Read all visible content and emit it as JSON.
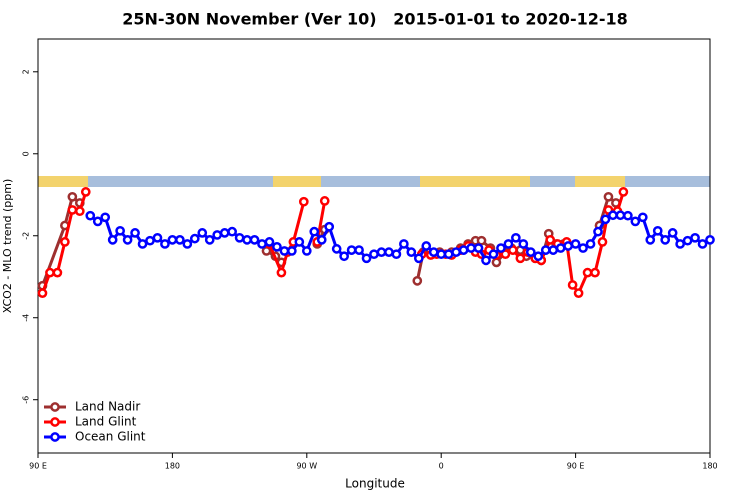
{
  "chart_data": {
    "type": "line",
    "title": "25N-30N November (Ver 10)   2015-01-01 to 2020-12-18",
    "x_label": "Longitude",
    "y_label": "XCO2 - MLO trend (ppm)",
    "xlim": [
      90,
      540
    ],
    "ylim": [
      -7.3,
      2.8
    ],
    "xticks": [
      {
        "value": 90,
        "label": "90 E"
      },
      180,
      {
        "value": 270,
        "label": "90 W"
      },
      {
        "value": 360,
        "label": "0"
      },
      {
        "value": 450,
        "label": "90 E"
      },
      {
        "value": 540,
        "label": "180"
      }
    ],
    "yticks": [
      -6,
      -4,
      -2,
      0,
      2
    ],
    "legend": "bottom-left",
    "series": [
      {
        "name": "Land Nadir",
        "color": "#9e2f2f",
        "x": [
          93,
          108,
          113,
          118,
          null,
          243,
          249,
          253,
          null,
          277,
          282,
          null,
          344,
          348,
          354,
          359,
          367,
          373,
          378,
          383,
          387,
          393,
          397,
          403,
          407,
          413,
          417,
          423,
          427,
          432,
          437,
          442,
          null,
          466,
          472,
          477
        ],
        "values": [
          -3.22,
          -1.75,
          -1.05,
          -1.2,
          null,
          -2.37,
          -2.5,
          -2.65,
          null,
          -2.2,
          -1.85,
          null,
          -3.1,
          -2.4,
          -2.45,
          -2.4,
          -2.4,
          -2.3,
          -2.2,
          -2.12,
          -2.12,
          -2.3,
          -2.65,
          -2.4,
          -2.3,
          -2.35,
          -2.5,
          -2.55,
          -2.6,
          -1.95,
          -2.2,
          -2.2,
          null,
          -1.75,
          -1.05,
          -1.2
        ]
      },
      {
        "name": "Land Glint",
        "color": "#ff0000",
        "x": [
          93,
          98,
          103,
          108,
          113,
          118,
          122,
          null,
          245,
          253,
          257,
          261,
          268,
          null,
          277,
          282,
          null,
          347,
          353,
          357,
          363,
          367,
          373,
          378,
          383,
          387,
          392,
          397,
          403,
          408,
          413,
          418,
          423,
          427,
          433,
          438,
          444,
          448,
          452,
          458,
          463,
          468,
          472,
          478,
          482
        ],
        "values": [
          -3.4,
          -2.9,
          -2.9,
          -2.15,
          -1.37,
          -1.4,
          -0.93,
          null,
          -2.2,
          -2.9,
          -2.4,
          -2.15,
          -1.17,
          null,
          -2.15,
          -1.15,
          null,
          -2.45,
          -2.47,
          -2.45,
          -2.45,
          -2.47,
          -2.35,
          -2.25,
          -2.4,
          -2.45,
          -2.35,
          -2.47,
          -2.45,
          -2.35,
          -2.55,
          -2.4,
          -2.55,
          -2.6,
          -2.1,
          -2.2,
          -2.15,
          -3.2,
          -3.4,
          -2.9,
          -2.9,
          -2.15,
          -1.37,
          -1.4,
          -0.93
        ]
      },
      {
        "name": "Ocean Glint",
        "color": "#0000ff",
        "x": [
          125,
          130,
          135,
          140,
          145,
          150,
          155,
          160,
          165,
          170,
          175,
          180,
          185,
          190,
          195,
          200,
          205,
          210,
          215,
          220,
          225,
          230,
          235,
          240,
          245,
          250,
          255,
          260,
          265,
          270,
          275,
          280,
          285,
          290,
          295,
          300,
          305,
          310,
          315,
          320,
          325,
          330,
          335,
          340,
          345,
          350,
          355,
          360,
          365,
          370,
          375,
          380,
          385,
          390,
          395,
          400,
          405,
          410,
          415,
          420,
          425,
          430,
          435,
          440,
          445,
          450,
          455,
          460,
          465,
          470,
          475,
          480,
          485,
          490,
          495,
          500,
          505,
          510,
          515,
          520,
          525,
          530,
          535,
          540
        ],
        "values": [
          -1.51,
          -1.65,
          -1.55,
          -2.1,
          -1.88,
          -2.1,
          -1.93,
          -2.2,
          -2.12,
          -2.05,
          -2.2,
          -2.1,
          -2.1,
          -2.2,
          -2.07,
          -1.93,
          -2.1,
          -1.98,
          -1.93,
          -1.9,
          -2.05,
          -2.1,
          -2.1,
          -2.2,
          -2.15,
          -2.27,
          -2.37,
          -2.37,
          -2.15,
          -2.37,
          -1.9,
          -2.1,
          -1.78,
          -2.32,
          -2.5,
          -2.35,
          -2.35,
          -2.55,
          -2.45,
          -2.4,
          -2.4,
          -2.45,
          -2.2,
          -2.4,
          -2.55,
          -2.25,
          -2.4,
          -2.45,
          -2.45,
          -2.4,
          -2.35,
          -2.3,
          -2.3,
          -2.6,
          -2.45,
          -2.3,
          -2.2,
          -2.05,
          -2.2,
          -2.4,
          -2.5,
          -2.35,
          -2.35,
          -2.3,
          -2.25,
          -2.2,
          -2.3,
          -2.2,
          -1.9,
          -1.6,
          -1.5,
          -1.5,
          -1.51,
          -1.65,
          -1.55,
          -2.1,
          -1.88,
          -2.1,
          -1.93,
          -2.2,
          -2.12,
          -2.05,
          -2.2,
          -2.1
        ]
      }
    ]
  }
}
